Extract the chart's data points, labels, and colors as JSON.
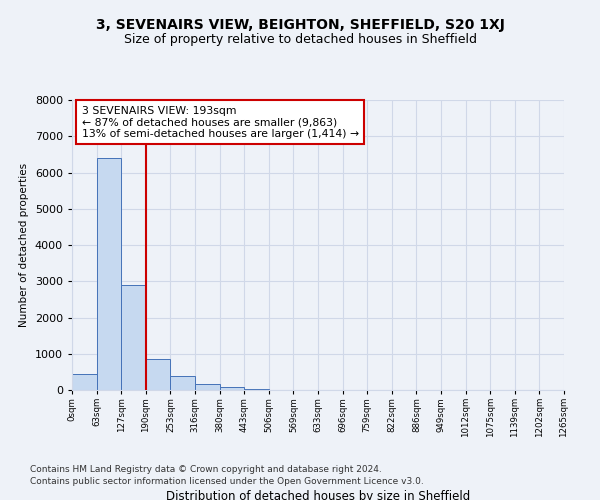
{
  "title": "3, SEVENAIRS VIEW, BEIGHTON, SHEFFIELD, S20 1XJ",
  "subtitle": "Size of property relative to detached houses in Sheffield",
  "xlabel": "Distribution of detached houses by size in Sheffield",
  "ylabel": "Number of detached properties",
  "footer1": "Contains HM Land Registry data © Crown copyright and database right 2024.",
  "footer2": "Contains public sector information licensed under the Open Government Licence v3.0.",
  "bins": [
    "0sqm",
    "63sqm",
    "127sqm",
    "190sqm",
    "253sqm",
    "316sqm",
    "380sqm",
    "443sqm",
    "506sqm",
    "569sqm",
    "633sqm",
    "696sqm",
    "759sqm",
    "822sqm",
    "886sqm",
    "949sqm",
    "1012sqm",
    "1075sqm",
    "1139sqm",
    "1202sqm",
    "1265sqm"
  ],
  "values": [
    430,
    6400,
    2900,
    850,
    390,
    175,
    80,
    20,
    0,
    0,
    0,
    0,
    0,
    0,
    0,
    0,
    0,
    0,
    0,
    0
  ],
  "bar_color": "#c6d9f0",
  "bar_edge_color": "#4472b8",
  "vline_x": 3.0,
  "vline_color": "#cc0000",
  "annotation_line1": "3 SEVENAIRS VIEW: 193sqm",
  "annotation_line2": "← 87% of detached houses are smaller (9,863)",
  "annotation_line3": "13% of semi-detached houses are larger (1,414) →",
  "annotation_box_color": "#ffffff",
  "annotation_box_edge": "#cc0000",
  "ylim": [
    0,
    8000
  ],
  "yticks": [
    0,
    1000,
    2000,
    3000,
    4000,
    5000,
    6000,
    7000,
    8000
  ],
  "grid_color": "#d0d8e8",
  "bg_color": "#eef2f8",
  "title_fontsize": 10,
  "subtitle_fontsize": 9
}
